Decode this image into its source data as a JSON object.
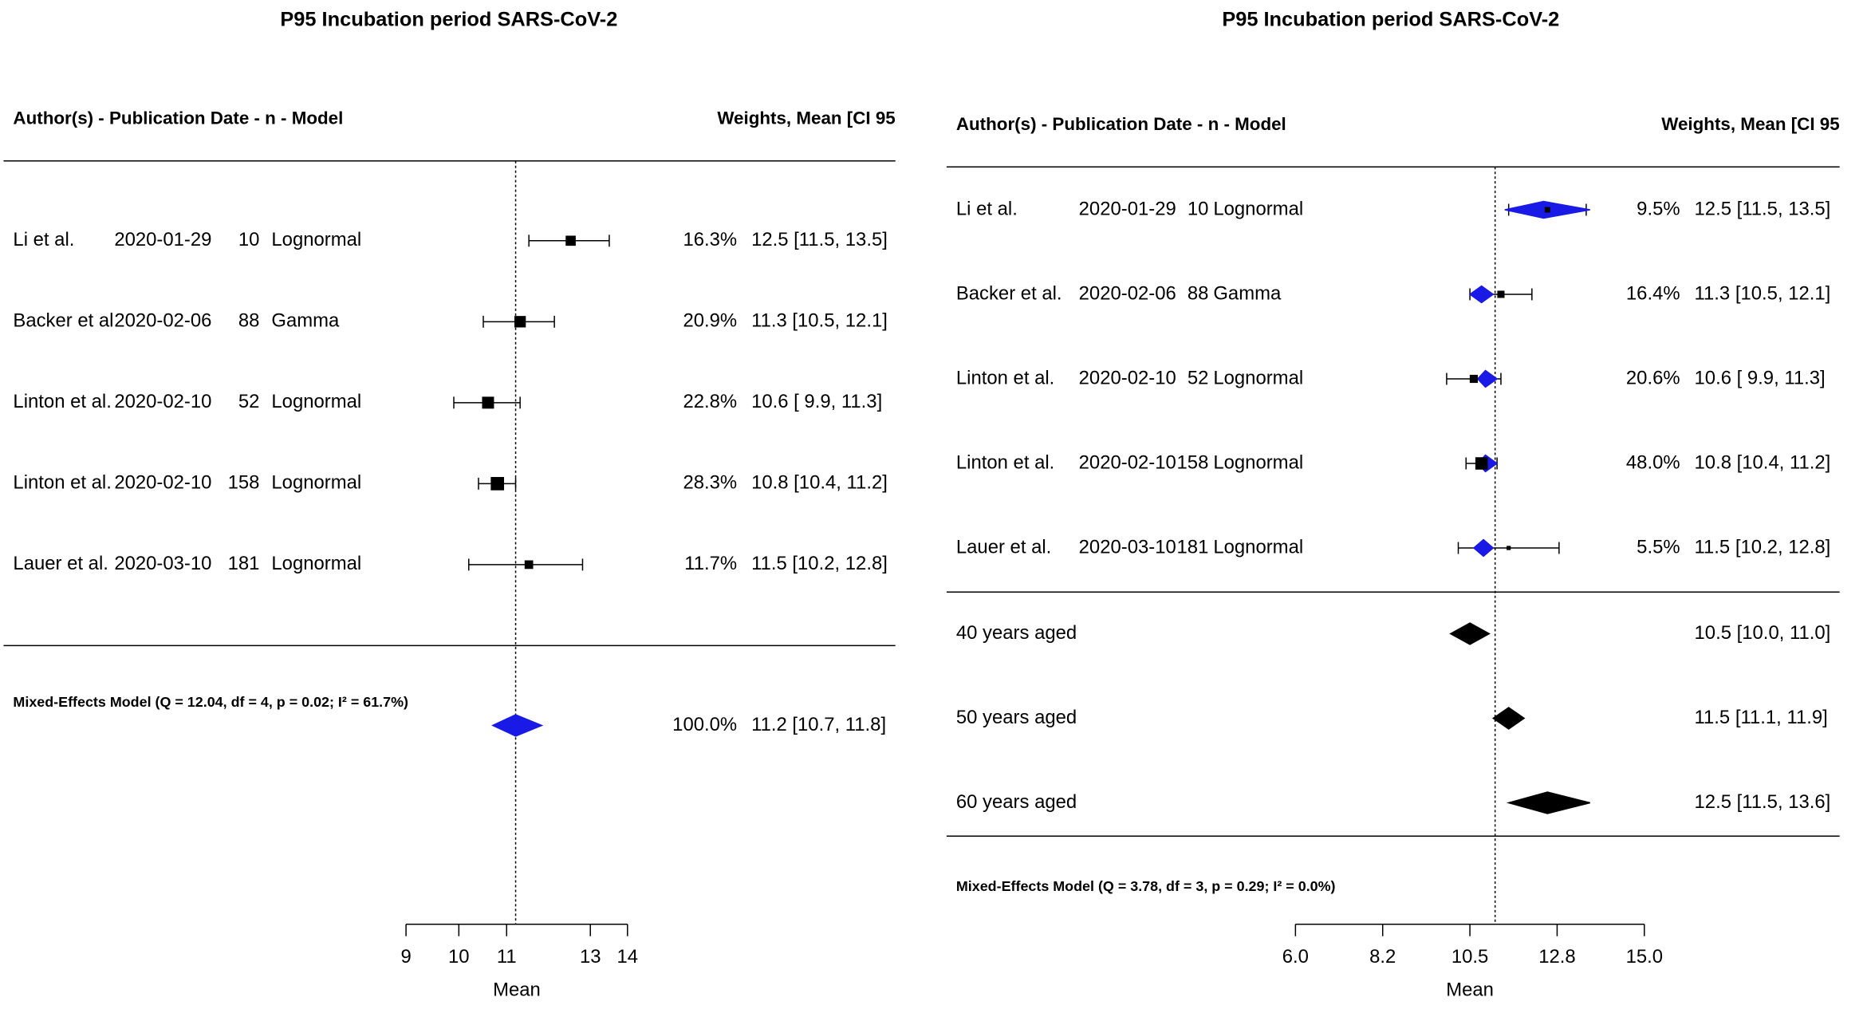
{
  "chart_data": [
    {
      "type": "forest",
      "title": "P95 Incubation period SARS-CoV-2",
      "header_left": "Author(s) - Publication Date -  n - Model",
      "header_right": "Weights, Mean [CI 95",
      "xlabel": "Mean",
      "log_scale": true,
      "xlim": [
        9,
        14
      ],
      "xticks": [
        9,
        10,
        11,
        13,
        14
      ],
      "square_color": "#000000",
      "diamond_color": "#1a1ae6",
      "studies": [
        {
          "author": "Li et al.",
          "date": "2020-01-29",
          "n": 10,
          "model": "Lognormal",
          "weight": 16.3,
          "weight_label": "16.3%",
          "mean": 12.5,
          "ci": [
            11.5,
            13.5
          ],
          "value_label": "12.5 [11.5, 13.5]"
        },
        {
          "author": "Backer et al.",
          "date": "2020-02-06",
          "n": 88,
          "model": "Gamma",
          "weight": 20.9,
          "weight_label": "20.9%",
          "mean": 11.3,
          "ci": [
            10.5,
            12.1
          ],
          "value_label": "11.3 [10.5, 12.1]"
        },
        {
          "author": "Linton et al.",
          "date": "2020-02-10",
          "n": 52,
          "model": "Lognormal",
          "weight": 22.8,
          "weight_label": "22.8%",
          "mean": 10.6,
          "ci": [
            9.9,
            11.3
          ],
          "value_label": "10.6 [ 9.9, 11.3]"
        },
        {
          "author": "Linton et al.",
          "date": "2020-02-10",
          "n": 158,
          "model": "Lognormal",
          "weight": 28.3,
          "weight_label": "28.3%",
          "mean": 10.8,
          "ci": [
            10.4,
            11.2
          ],
          "value_label": "10.8 [10.4, 11.2]"
        },
        {
          "author": "Lauer et al.",
          "date": "2020-03-10",
          "n": 181,
          "model": "Lognormal",
          "weight": 11.7,
          "weight_label": "11.7%",
          "mean": 11.5,
          "ci": [
            10.2,
            12.8
          ],
          "value_label": "11.5 [10.2, 12.8]"
        }
      ],
      "summary": {
        "label": "Mixed-Effects Model (Q = 12.04, df = 4, p = 0.02; I² = 61.7%)",
        "weight": 100.0,
        "weight_label": "100.0%",
        "mean": 11.2,
        "ci": [
          10.7,
          11.8
        ],
        "value_label": "11.2 [10.7, 11.8]"
      }
    },
    {
      "type": "forest",
      "title": "P95 Incubation period SARS-CoV-2",
      "header_left": "Author(s) - Publication Date -  n - Model",
      "header_right": "Weights, Mean [CI 95",
      "xlabel": "Mean",
      "log_scale": false,
      "xlim": [
        6,
        15
      ],
      "xticks": [
        {
          "value": 6,
          "label": "6.0"
        },
        {
          "value": 8.25,
          "label": "8.2"
        },
        {
          "value": 10.5,
          "label": "10.5"
        },
        {
          "value": 12.75,
          "label": "12.8"
        },
        {
          "value": 15,
          "label": "15.0"
        }
      ],
      "refline": 11.15,
      "square_color": "#000000",
      "diamond_color": "#1a1ae6",
      "subgroup_color": "#000000",
      "studies": [
        {
          "author": "Li et al.",
          "date": "2020-01-29",
          "n": 10,
          "model": "Lognormal",
          "weight": 9.5,
          "weight_label": "9.5%",
          "mean": 12.5,
          "ci": [
            11.5,
            13.5
          ],
          "value_label": "12.5 [11.5, 13.5]",
          "fitted": [
            12.4,
            11.4,
            13.6
          ]
        },
        {
          "author": "Backer et al.",
          "date": "2020-02-06",
          "n": 88,
          "model": "Gamma",
          "weight": 16.4,
          "weight_label": "16.4%",
          "mean": 11.3,
          "ci": [
            10.5,
            12.1
          ],
          "value_label": "11.3 [10.5, 12.1]",
          "fitted": [
            10.8,
            10.5,
            11.1
          ]
        },
        {
          "author": "Linton et al.",
          "date": "2020-02-10",
          "n": 52,
          "model": "Lognormal",
          "weight": 20.6,
          "weight_label": "20.6%",
          "mean": 10.6,
          "ci": [
            9.9,
            11.3
          ],
          "value_label": "10.6 [ 9.9, 11.3]",
          "fitted": [
            10.9,
            10.7,
            11.2
          ]
        },
        {
          "author": "Linton et al.",
          "date": "2020-02-10",
          "n": 158,
          "model": "Lognormal",
          "weight": 48.0,
          "weight_label": "48.0%",
          "mean": 10.8,
          "ci": [
            10.4,
            11.2
          ],
          "value_label": "10.8 [10.4, 11.2]",
          "fitted": [
            10.9,
            10.7,
            11.2
          ]
        },
        {
          "author": "Lauer et al.",
          "date": "2020-03-10",
          "n": 181,
          "model": "Lognormal",
          "weight": 5.5,
          "weight_label": "5.5%",
          "mean": 11.5,
          "ci": [
            10.2,
            12.8
          ],
          "value_label": "11.5 [10.2, 12.8]",
          "fitted": [
            10.85,
            10.6,
            11.1
          ]
        }
      ],
      "subgroups": [
        {
          "label": "40 years aged",
          "mean": 10.5,
          "ci": [
            10.0,
            11.0
          ],
          "value_label": "10.5 [10.0, 11.0]"
        },
        {
          "label": "50 years aged",
          "mean": 11.5,
          "ci": [
            11.1,
            11.9
          ],
          "value_label": "11.5 [11.1, 11.9]"
        },
        {
          "label": "60 years aged",
          "mean": 12.5,
          "ci": [
            11.5,
            13.6
          ],
          "value_label": "12.5 [11.5, 13.6]"
        }
      ],
      "model_text": "Mixed-Effects Model (Q = 3.78, df = 3, p = 0.29; I² = 0.0%)"
    }
  ]
}
